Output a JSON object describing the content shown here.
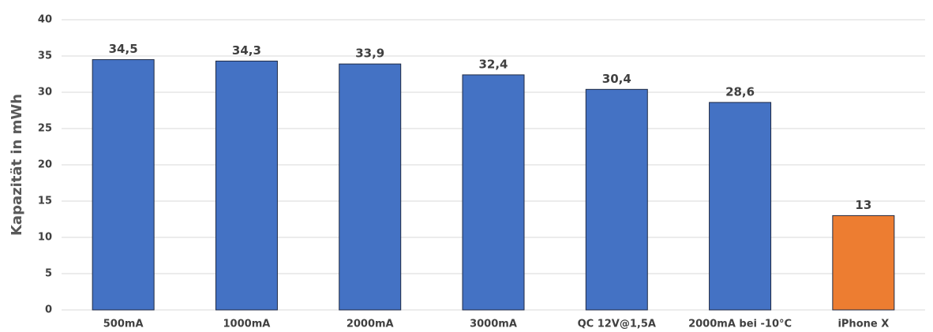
{
  "chart_data": {
    "type": "bar",
    "y_label": "Kapazität in mWh",
    "categories": [
      "500mA",
      "1000mA",
      "2000mA",
      "3000mA",
      "QC 12V@1,5A",
      "2000mA bei -10°C",
      "iPhone X"
    ],
    "values": [
      34.5,
      34.3,
      33.9,
      32.4,
      30.4,
      28.6,
      13
    ],
    "value_labels": [
      "34,5",
      "34,3",
      "33,9",
      "32,4",
      "30,4",
      "28,6",
      "13"
    ],
    "colors": [
      "#4472c4",
      "#4472c4",
      "#4472c4",
      "#4472c4",
      "#4472c4",
      "#4472c4",
      "#ed7d31"
    ],
    "ylim": [
      0,
      40
    ],
    "yticks": [
      0,
      5,
      10,
      15,
      20,
      25,
      30,
      35,
      40
    ],
    "grid": true
  }
}
